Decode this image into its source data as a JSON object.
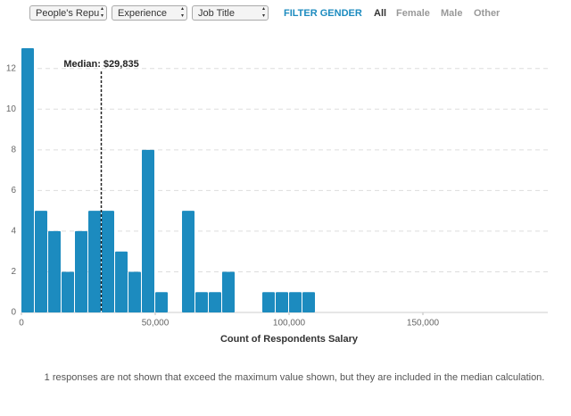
{
  "controls": {
    "selects": [
      "People's Repu",
      "Experience",
      "Job Title"
    ],
    "gender_label": "FILTER GENDER",
    "genders": [
      "All",
      "Female",
      "Male",
      "Other"
    ]
  },
  "chart_data": {
    "type": "histogram",
    "xlabel": "Count of Respondents Salary",
    "bins": [
      0,
      5000,
      10000,
      15000,
      20000,
      25000,
      30000,
      35000,
      40000,
      45000,
      50000,
      55000,
      60000,
      65000,
      70000,
      75000,
      80000,
      85000,
      90000,
      95000,
      100000,
      105000,
      110000
    ],
    "values": [
      13,
      5,
      4,
      2,
      4,
      5,
      5,
      3,
      2,
      8,
      1,
      0,
      5,
      1,
      1,
      2,
      0,
      0,
      1,
      1,
      1,
      1
    ],
    "color": "#1c8bbf",
    "xlim": [
      0,
      200000
    ],
    "xticks": [
      0,
      {
        "value": 50000,
        "label": "50,000"
      },
      {
        "value": 100000,
        "label": "100,000"
      },
      {
        "value": 150000,
        "label": "150,000"
      }
    ],
    "ylim": [
      0,
      13
    ],
    "yticks": [
      0,
      2,
      4,
      6,
      8,
      10,
      12
    ],
    "grid": true,
    "median": {
      "label": "Median: $29,835",
      "value": 29835
    },
    "note": "1 responses are not shown that exceed the maximum value shown, but they are included in the median calculation."
  }
}
